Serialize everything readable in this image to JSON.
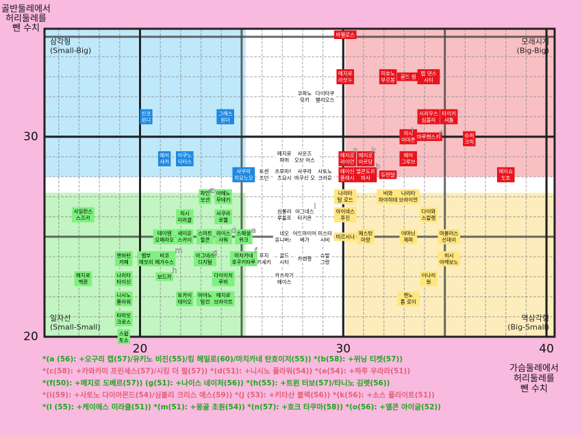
{
  "chart_data": {
    "type": "scatter",
    "y_label": "골반둘레에서\n허리둘레를\n뺀 수치",
    "x_label": "가슴둘레에서\n허리둘레를\n뺀 수치",
    "xlim": [
      15.3,
      40.4
    ],
    "ylim": [
      20,
      35.4
    ],
    "xticks": [
      20,
      30,
      40
    ],
    "yticks": [
      20,
      30
    ],
    "grid": true,
    "regions": [
      {
        "label": "삼각형\n(Small-Big)",
        "color": "#bfe9fb",
        "corner": "top-left",
        "x": [
          15.3,
          25.2
        ],
        "y": [
          28.0,
          35.4
        ]
      },
      {
        "label": "모래시계\n(Big-Big)",
        "color": "#f9c0c4",
        "corner": "top-right",
        "x": [
          30.1,
          40.4
        ],
        "y": [
          28.0,
          35.4
        ]
      },
      {
        "label": "일자선\n(Small-Small)",
        "color": "#c2f5c2",
        "corner": "bottom-left",
        "x": [
          15.3,
          25.2
        ],
        "y": [
          20,
          27.2
        ]
      },
      {
        "label": "역삼각형\n(Big-Small)",
        "color": "#fdedbc",
        "corner": "bottom-right",
        "x": [
          30.1,
          40.4
        ],
        "y": [
          20,
          27.2
        ]
      }
    ],
    "series": [
      {
        "color": "#e8141e",
        "text_color": "#ffffff",
        "labels": [
          "바젤로스",
          "메지로\n라모누",
          "미호노\n부르봉",
          "골드 쉽",
          "탭 댄스\n시티",
          "시리우스\n심볼리",
          "타이키\n셔틀",
          "히시\n아마존",
          "마루젠스키",
          "슈퍼\n크릭",
          "에어\n그루브",
          "메지로\n라이언",
          "메지로\n아르당",
          "에이신\n플래시",
          "엘콘도르\n파사",
          "듀란달",
          "메이쇼\n도토"
        ],
        "x": [
          30.1,
          30.1,
          32.2,
          33.2,
          34.2,
          34.2,
          35.2,
          33.2,
          34.2,
          36.2,
          33.2,
          30.2,
          31.1,
          30.2,
          31.1,
          32.2,
          38.0
        ],
        "y": [
          35.1,
          33.0,
          33.0,
          33.0,
          33.0,
          31.0,
          31.0,
          30.0,
          30.0,
          29.9,
          28.9,
          28.9,
          28.9,
          28.1,
          28.1,
          28.1,
          28.1
        ]
      },
      {
        "color": "#ffffff",
        "text_color": "#000000",
        "labels": [
          "코파노\n릿키",
          "다이타쿠\n헬리오스",
          "메지로\n파머",
          "사운즈\n오브 어스",
          "토센\n조던",
          "츠루마루\n츠요시",
          "사쿠라\n바쿠신 오",
          "사토노\n크라운",
          "심볼리\n루돌프",
          "아그네스\n타키온",
          "네오\n유니버스",
          "어드마이어\n베가",
          "미스터\n시비",
          "후지\n키세키",
          "골드\n시티",
          "카렌짱",
          "슈발\n그랑",
          "카츠라기\n에이스"
        ],
        "x": [
          28.1,
          29.1,
          27.1,
          28.1,
          26.1,
          27.1,
          28.1,
          29.1,
          27.1,
          28.1,
          27.1,
          28.1,
          29.1,
          26.1,
          27.1,
          28.1,
          29.1,
          27.1
        ],
        "y": [
          32.0,
          32.0,
          29.0,
          29.0,
          28.1,
          28.1,
          28.1,
          28.1,
          26.1,
          26.1,
          25.0,
          25.0,
          25.0,
          23.9,
          23.9,
          23.9,
          23.9,
          22.9
        ]
      },
      {
        "color": "#1e88e0",
        "text_color": "#ffffff",
        "labels": [
          "신코\n윈디",
          "그래스\n원더",
          "에어\n샤커",
          "이쿠노\n딕터스",
          "사쿠라\n치요노오"
        ],
        "x": [
          20.3,
          24.2,
          21.2,
          22.2,
          25.1
        ],
        "y": [
          31.0,
          31.0,
          28.9,
          28.9,
          28.1
        ]
      },
      {
        "color": "#7ef07e",
        "text_color": "#000000",
        "labels": [
          "파인\n모션",
          "아메노\n무테키",
          "사일런스\n스즈카",
          "히시\n미라클",
          "사쿠라\n로렐",
          "테이엠\n오페라오",
          "세이운\n스카이",
          "스마트\n팔콘",
          "라이스\n샤워",
          "스페셜\n위크",
          "맨하탄\n카페",
          "뱀부\n메모리",
          "비코\n페가수스",
          "아그네스\n디지털",
          "마치카네\n후쿠키타루",
          "메지로\n맥퀸",
          "보드카",
          "나리타\n타이신",
          "다이이치\n루비",
          "니시노\n플라워",
          "토카이\n테이오",
          "마야노\n탑건",
          "메지로\n브라이트",
          "타마모\n크로스",
          "스윕\n토쇼"
        ],
        "x": [
          23.2,
          24.1,
          17.2,
          22.2,
          24.1,
          21.2,
          22.2,
          23.2,
          24.1,
          25.1,
          19.2,
          20.3,
          21.2,
          23.2,
          25.1,
          17.2,
          21.2,
          19.2,
          24.1,
          19.2,
          22.2,
          23.2,
          24.1,
          19.2,
          19.2
        ],
        "y": [
          27.0,
          27.0,
          26.1,
          26.0,
          26.0,
          25.0,
          25.0,
          25.0,
          25.0,
          25.0,
          23.9,
          23.9,
          23.9,
          23.9,
          23.9,
          22.9,
          23.0,
          22.9,
          22.9,
          21.9,
          21.9,
          21.9,
          21.9,
          20.9,
          20.0
        ]
      },
      {
        "color": "#ffe680",
        "text_color": "#000000",
        "labels": [
          "나리타\n탑 로드",
          "비와\n하야히데",
          "나리타\n브라이언",
          "아이네스\n후진",
          "다이와\n스칼렛",
          "비르시나",
          "에스턴\n마팡",
          "야마닌\n제퍼",
          "마블러스\n선데이",
          "히시\n아케보노",
          "이나리\n원",
          "젠노\n롭 로이"
        ],
        "x": [
          30.1,
          32.2,
          33.2,
          30.1,
          34.2,
          30.1,
          31.1,
          33.2,
          35.2,
          35.2,
          34.2,
          33.2
        ],
        "y": [
          27.0,
          27.0,
          27.0,
          26.1,
          26.1,
          25.0,
          25.0,
          25.0,
          25.0,
          23.9,
          22.9,
          21.9
        ]
      }
    ],
    "annotations": [
      {
        "text": "a",
        "x": 25.6,
        "y": 25.3
      },
      {
        "text": "b",
        "x": 31.7,
        "y": 28.5
      },
      {
        "text": "c",
        "x": 34.8,
        "y": 30.2
      },
      {
        "text": "d",
        "x": 24.6,
        "y": 25.3
      },
      {
        "text": "e",
        "x": 23.5,
        "y": 27.3
      },
      {
        "text": "f",
        "x": 25.7,
        "y": 24.3
      },
      {
        "text": "g",
        "x": 23.7,
        "y": 24.2
      },
      {
        "text": "h",
        "x": 21.7,
        "y": 23.3
      },
      {
        "text": "i",
        "x": 33.4,
        "y": 30.3
      },
      {
        "text": "l",
        "x": 28.6,
        "y": 26.5
      },
      {
        "text": "k",
        "x": 31.5,
        "y": 29.3
      },
      {
        "text": "m",
        "x": 21.9,
        "y": 24.3
      },
      {
        "text": "n",
        "x": 30.6,
        "y": 29.3
      },
      {
        "text": "o",
        "x": 23.6,
        "y": 27.3
      }
    ],
    "notes": [
      "*(a (56): +오구리 캡(57)/유키노 비진(55)/킹 헤일로(60)/마치카네 탄호이저(55)) *(b(58): +위닝 티켓(57))",
      "*(c(58): +카와카미 프린세스(57)/시킹 더 펄(57)) *(d(51): +니시노 플라워(54)) *(e(54): +하루 우라라(51))",
      "*(f(50): +메지로 도베르(57)) (g(51): +나이스 네이처(56)) *(h(55): +트윈 터보(57)/타니노 김렛(56))",
      "*(i(59): +사토노 다이아몬드(54)/심볼리 크리스 에스(59)) *(j (53): +키타산 블랙(56)) *(k(56): +소스 플라이트(51))",
      "*(l (55): +케이에스 미라클(51)) *(m(51): +몽골 초원(54)) *(n(57): +호크 타쿠마(58)) *(o(56): +엘콘 아이글(52))"
    ]
  }
}
